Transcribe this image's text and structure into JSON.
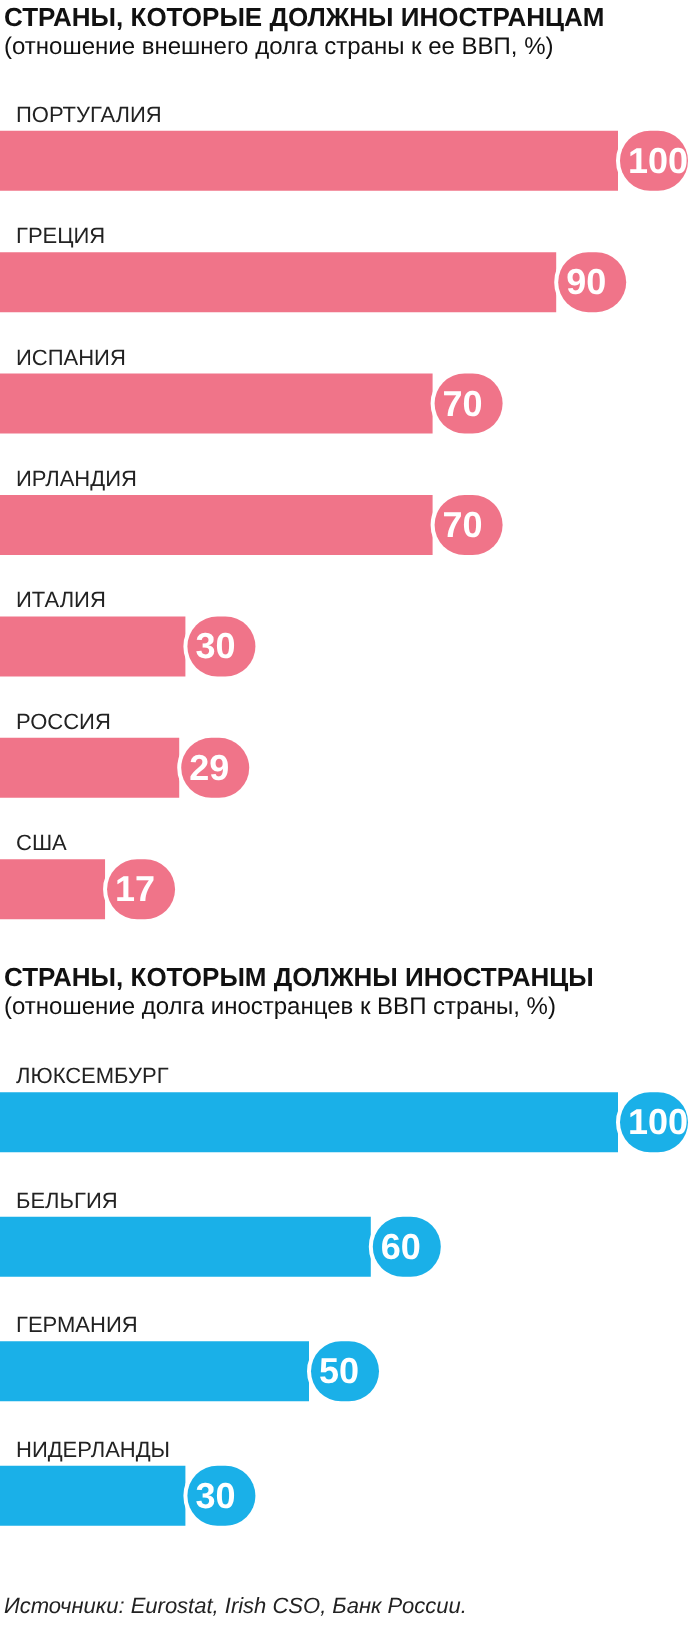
{
  "chart_data": [
    {
      "type": "bar",
      "orientation": "horizontal",
      "title": "СТРАНЫ, КОТОРЫЕ ДОЛЖНЫ ИНОСТРАНЦАМ",
      "subtitle": "(отношение внешнего долга страны к ее ВВП, %)",
      "categories": [
        "ПОРТУГАЛИЯ",
        "ГРЕЦИЯ",
        "ИСПАНИЯ",
        "ИРЛАНДИЯ",
        "ИТАЛИЯ",
        "РОССИЯ",
        "США"
      ],
      "values": [
        100,
        90,
        70,
        70,
        30,
        29,
        17
      ],
      "color": "#f07489",
      "tick_labels": "y",
      "data_labels": true
    },
    {
      "type": "bar",
      "orientation": "horizontal",
      "title": "СТРАНЫ, КОТОРЫМ ДОЛЖНЫ ИНОСТРАНЦЫ",
      "subtitle": "(отношение долга иностранцев к ВВП страны, %)",
      "categories": [
        "ЛЮКСЕМБУРГ",
        "БЕЛЬГИЯ",
        "ГЕРМАНИЯ",
        "НИДЕРЛАНДЫ"
      ],
      "values": [
        100,
        60,
        50,
        30
      ],
      "color": "#1ab0e8",
      "tick_labels": "y",
      "data_labels": true,
      "annotations": [
        "Источники: Eurostat, Irish CSO, Банк России."
      ]
    }
  ]
}
